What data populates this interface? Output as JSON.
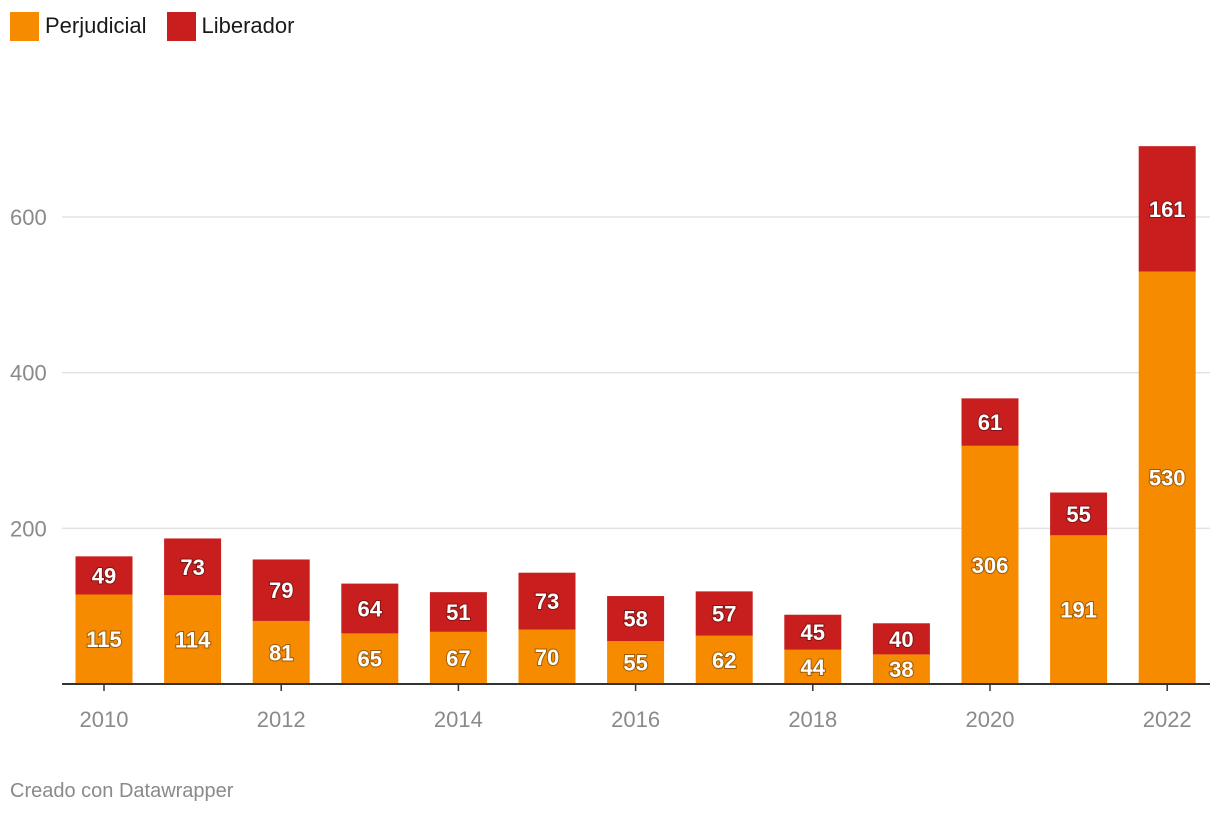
{
  "legend": [
    {
      "label": "Perjudicial",
      "color": "#F78B00"
    },
    {
      "label": "Liberador",
      "color": "#C81E1E"
    }
  ],
  "footer": "Creado con Datawrapper",
  "chart_data": {
    "type": "bar",
    "stacked": true,
    "categories": [
      "2010",
      "2011",
      "2012",
      "2013",
      "2014",
      "2015",
      "2016",
      "2017",
      "2018",
      "2019",
      "2020",
      "2021",
      "2022"
    ],
    "series": [
      {
        "name": "Perjudicial",
        "color": "#F78B00",
        "values": [
          115,
          114,
          81,
          65,
          67,
          70,
          55,
          62,
          44,
          38,
          306,
          191,
          530
        ]
      },
      {
        "name": "Liberador",
        "color": "#C81E1E",
        "values": [
          49,
          73,
          79,
          64,
          51,
          73,
          58,
          57,
          45,
          40,
          61,
          55,
          161
        ]
      }
    ],
    "x_tick_labels": [
      "2010",
      "2012",
      "2014",
      "2016",
      "2018",
      "2020",
      "2022"
    ],
    "y_ticks": [
      200,
      400,
      600
    ],
    "ylim": [
      0,
      700
    ],
    "grid": true,
    "legend_position": "top-left",
    "title": "",
    "xlabel": "",
    "ylabel": ""
  }
}
